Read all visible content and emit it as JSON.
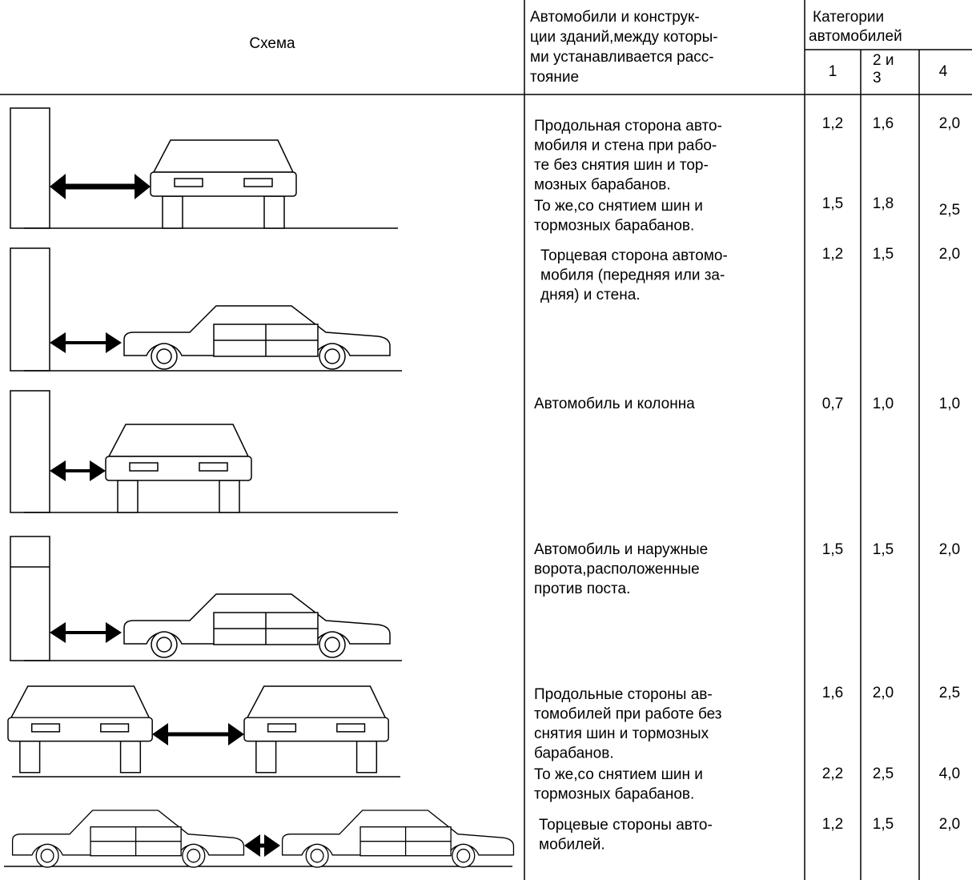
{
  "header": {
    "scheme": "Схема",
    "description": [
      "Автомобили и конструк-",
      "ции зданий,между которы-",
      "ми устанавливается расс-",
      "тояние"
    ],
    "categories": [
      "Категории",
      "автомобилей"
    ],
    "category_columns": [
      [
        "1"
      ],
      [
        "2 и",
        "3"
      ],
      [
        "4"
      ]
    ]
  },
  "rows": [
    {
      "text": [
        "Продольная сторона авто-",
        "мобиля и стена при рабо-",
        "те без снятия шин и тор-",
        "мозных барабанов."
      ],
      "values": [
        "1,2",
        "1,6",
        "2,0"
      ]
    },
    {
      "text": [
        "То же,со снятием шин и",
        "тормозных барабанов."
      ],
      "values": [
        "1,5",
        "1,8",
        "2,5"
      ]
    },
    {
      "text": [
        "Торцевая сторона автомо-",
        "мобиля (передняя или за-",
        "дняя) и стена."
      ],
      "values": [
        "1,2",
        "1,5",
        "2,0"
      ]
    },
    {
      "text": [
        "Автомобиль и колонна"
      ],
      "values": [
        "0,7",
        "1,0",
        "1,0"
      ]
    },
    {
      "text": [
        "Автомобиль и наружные",
        "ворота,расположенные",
        "против поста."
      ],
      "values": [
        "1,5",
        "1,5",
        "2,0"
      ]
    },
    {
      "text": [
        "Продольные стороны ав-",
        "томобилей при работе без",
        "снятия шин и тормозных",
        "барабанов."
      ],
      "values": [
        "1,6",
        "2,0",
        "2,5"
      ]
    },
    {
      "text": [
        "То же,со снятием шин и",
        "тормозных барабанов."
      ],
      "values": [
        "2,2",
        "2,5",
        "4,0"
      ]
    },
    {
      "text": [
        "Торцевые стороны авто-",
        "мобилей."
      ],
      "values": [
        "1,2",
        "1,5",
        "2,0"
      ]
    }
  ]
}
